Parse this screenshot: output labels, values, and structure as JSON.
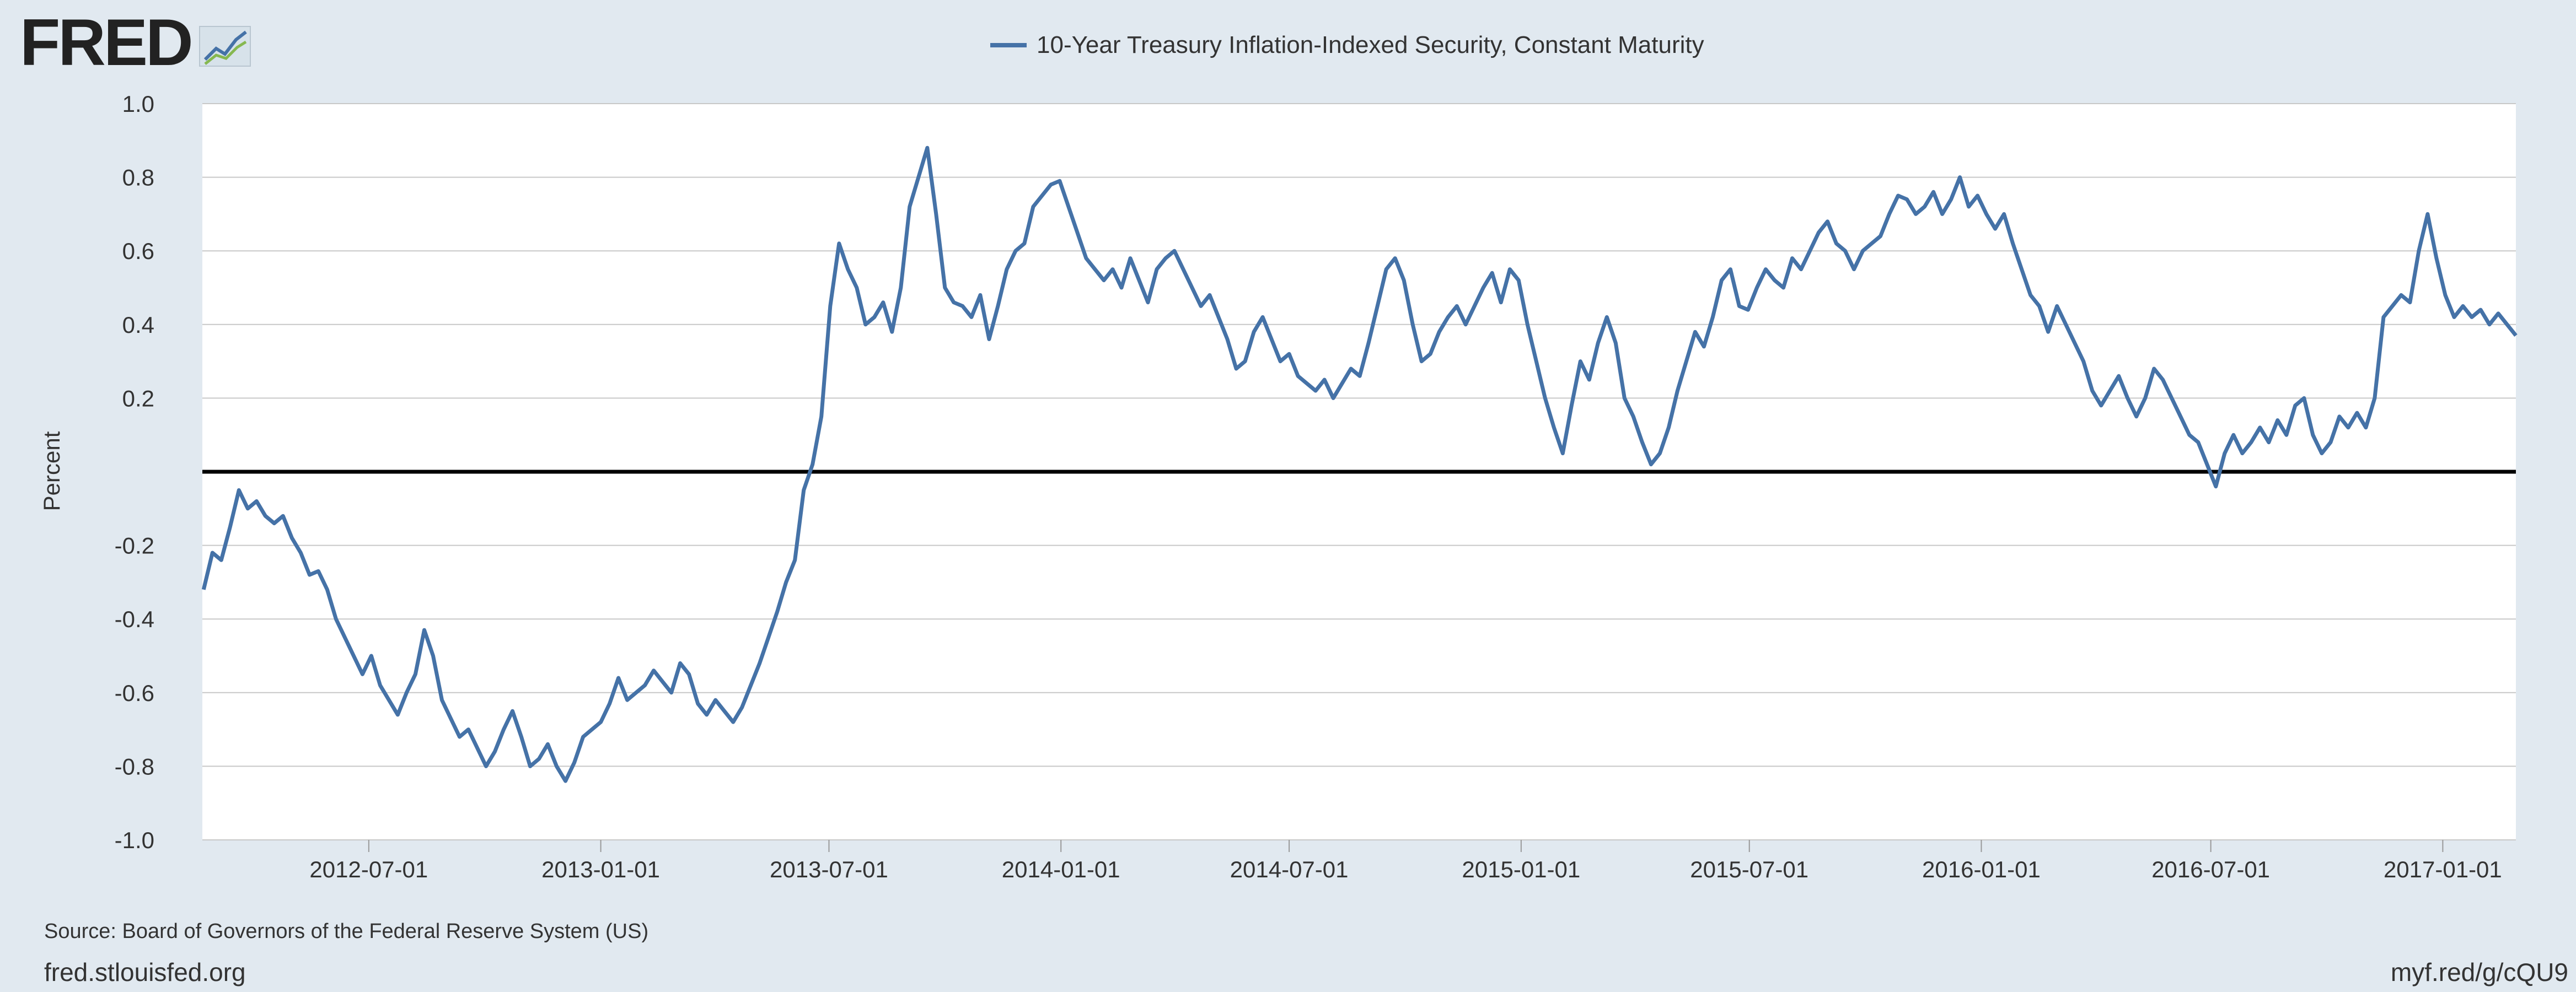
{
  "header": {
    "logo_text": "FRED",
    "logo_icon": "line-chart-icon"
  },
  "footer": {
    "source": "Source: Board of Governors of the Federal Reserve System (US)",
    "site": "fred.stlouisfed.org",
    "short_url": "myf.red/g/cQU9"
  },
  "colors": {
    "background": "#e1e9f0",
    "plot_background": "#ffffff",
    "series_line": "#4572a7",
    "gridline": "#c8c8c8",
    "zero_line": "#000000",
    "text": "#333333"
  },
  "chart_data": {
    "type": "line",
    "title": "",
    "xlabel": "",
    "ylabel": "Percent",
    "legend_position": "top-center",
    "grid": true,
    "ylim": [
      -1.0,
      1.0
    ],
    "xlim": [
      "2012-02-20",
      "2017-02-28"
    ],
    "y_ticks": [
      "1.0",
      "0.8",
      "0.6",
      "0.4",
      "0.2",
      "",
      "-0.2",
      "-0.4",
      "-0.6",
      "-0.8",
      "-1.0"
    ],
    "y_tick_values": [
      1.0,
      0.8,
      0.6,
      0.4,
      0.2,
      0.0,
      -0.2,
      -0.4,
      -0.6,
      -0.8,
      -1.0
    ],
    "x_ticks": [
      "2012-07-01",
      "2013-01-01",
      "2013-07-01",
      "2014-01-01",
      "2014-07-01",
      "2015-01-01",
      "2015-07-01",
      "2016-01-01",
      "2016-07-01",
      "2017-01-01"
    ],
    "series": [
      {
        "name": "10-Year Treasury Inflation-Indexed Security, Constant Maturity",
        "points": [
          [
            "2012-02-21",
            -0.32
          ],
          [
            "2012-02-28",
            -0.22
          ],
          [
            "2012-03-06",
            -0.24
          ],
          [
            "2012-03-13",
            -0.15
          ],
          [
            "2012-03-20",
            -0.05
          ],
          [
            "2012-03-27",
            -0.1
          ],
          [
            "2012-04-03",
            -0.08
          ],
          [
            "2012-04-10",
            -0.12
          ],
          [
            "2012-04-17",
            -0.14
          ],
          [
            "2012-04-24",
            -0.12
          ],
          [
            "2012-05-01",
            -0.18
          ],
          [
            "2012-05-08",
            -0.22
          ],
          [
            "2012-05-15",
            -0.28
          ],
          [
            "2012-05-22",
            -0.27
          ],
          [
            "2012-05-29",
            -0.32
          ],
          [
            "2012-06-05",
            -0.4
          ],
          [
            "2012-06-12",
            -0.45
          ],
          [
            "2012-06-19",
            -0.5
          ],
          [
            "2012-06-26",
            -0.55
          ],
          [
            "2012-07-03",
            -0.5
          ],
          [
            "2012-07-10",
            -0.58
          ],
          [
            "2012-07-17",
            -0.62
          ],
          [
            "2012-07-24",
            -0.66
          ],
          [
            "2012-07-31",
            -0.6
          ],
          [
            "2012-08-07",
            -0.55
          ],
          [
            "2012-08-14",
            -0.43
          ],
          [
            "2012-08-21",
            -0.5
          ],
          [
            "2012-08-28",
            -0.62
          ],
          [
            "2012-09-04",
            -0.67
          ],
          [
            "2012-09-11",
            -0.72
          ],
          [
            "2012-09-18",
            -0.7
          ],
          [
            "2012-09-25",
            -0.75
          ],
          [
            "2012-10-02",
            -0.8
          ],
          [
            "2012-10-09",
            -0.76
          ],
          [
            "2012-10-16",
            -0.7
          ],
          [
            "2012-10-23",
            -0.65
          ],
          [
            "2012-10-30",
            -0.72
          ],
          [
            "2012-11-06",
            -0.8
          ],
          [
            "2012-11-13",
            -0.78
          ],
          [
            "2012-11-20",
            -0.74
          ],
          [
            "2012-11-27",
            -0.8
          ],
          [
            "2012-12-04",
            -0.84
          ],
          [
            "2012-12-11",
            -0.79
          ],
          [
            "2012-12-18",
            -0.72
          ],
          [
            "2012-12-25",
            -0.7
          ],
          [
            "2013-01-01",
            -0.68
          ],
          [
            "2013-01-08",
            -0.63
          ],
          [
            "2013-01-15",
            -0.56
          ],
          [
            "2013-01-22",
            -0.62
          ],
          [
            "2013-01-29",
            -0.6
          ],
          [
            "2013-02-05",
            -0.58
          ],
          [
            "2013-02-12",
            -0.54
          ],
          [
            "2013-02-19",
            -0.57
          ],
          [
            "2013-02-26",
            -0.6
          ],
          [
            "2013-03-05",
            -0.52
          ],
          [
            "2013-03-12",
            -0.55
          ],
          [
            "2013-03-19",
            -0.63
          ],
          [
            "2013-03-26",
            -0.66
          ],
          [
            "2013-04-02",
            -0.62
          ],
          [
            "2013-04-09",
            -0.65
          ],
          [
            "2013-04-16",
            -0.68
          ],
          [
            "2013-04-23",
            -0.64
          ],
          [
            "2013-04-30",
            -0.58
          ],
          [
            "2013-05-07",
            -0.52
          ],
          [
            "2013-05-14",
            -0.45
          ],
          [
            "2013-05-21",
            -0.38
          ],
          [
            "2013-05-28",
            -0.3
          ],
          [
            "2013-06-04",
            -0.24
          ],
          [
            "2013-06-11",
            -0.05
          ],
          [
            "2013-06-18",
            0.02
          ],
          [
            "2013-06-25",
            0.15
          ],
          [
            "2013-07-02",
            0.45
          ],
          [
            "2013-07-09",
            0.62
          ],
          [
            "2013-07-16",
            0.55
          ],
          [
            "2013-07-23",
            0.5
          ],
          [
            "2013-07-30",
            0.4
          ],
          [
            "2013-08-06",
            0.42
          ],
          [
            "2013-08-13",
            0.46
          ],
          [
            "2013-08-20",
            0.38
          ],
          [
            "2013-08-27",
            0.5
          ],
          [
            "2013-09-03",
            0.72
          ],
          [
            "2013-09-10",
            0.8
          ],
          [
            "2013-09-17",
            0.88
          ],
          [
            "2013-09-24",
            0.7
          ],
          [
            "2013-10-01",
            0.5
          ],
          [
            "2013-10-08",
            0.46
          ],
          [
            "2013-10-15",
            0.45
          ],
          [
            "2013-10-22",
            0.42
          ],
          [
            "2013-10-29",
            0.48
          ],
          [
            "2013-11-05",
            0.36
          ],
          [
            "2013-11-12",
            0.45
          ],
          [
            "2013-11-19",
            0.55
          ],
          [
            "2013-11-26",
            0.6
          ],
          [
            "2013-12-03",
            0.62
          ],
          [
            "2013-12-10",
            0.72
          ],
          [
            "2013-12-17",
            0.75
          ],
          [
            "2013-12-24",
            0.78
          ],
          [
            "2013-12-31",
            0.79
          ],
          [
            "2014-01-07",
            0.72
          ],
          [
            "2014-01-14",
            0.65
          ],
          [
            "2014-01-21",
            0.58
          ],
          [
            "2014-01-28",
            0.55
          ],
          [
            "2014-02-04",
            0.52
          ],
          [
            "2014-02-11",
            0.55
          ],
          [
            "2014-02-18",
            0.5
          ],
          [
            "2014-02-25",
            0.58
          ],
          [
            "2014-03-04",
            0.52
          ],
          [
            "2014-03-11",
            0.46
          ],
          [
            "2014-03-18",
            0.55
          ],
          [
            "2014-03-25",
            0.58
          ],
          [
            "2014-04-01",
            0.6
          ],
          [
            "2014-04-08",
            0.55
          ],
          [
            "2014-04-15",
            0.5
          ],
          [
            "2014-04-22",
            0.45
          ],
          [
            "2014-04-29",
            0.48
          ],
          [
            "2014-05-06",
            0.42
          ],
          [
            "2014-05-13",
            0.36
          ],
          [
            "2014-05-20",
            0.28
          ],
          [
            "2014-05-27",
            0.3
          ],
          [
            "2014-06-03",
            0.38
          ],
          [
            "2014-06-10",
            0.42
          ],
          [
            "2014-06-17",
            0.36
          ],
          [
            "2014-06-24",
            0.3
          ],
          [
            "2014-07-01",
            0.32
          ],
          [
            "2014-07-08",
            0.26
          ],
          [
            "2014-07-15",
            0.24
          ],
          [
            "2014-07-22",
            0.22
          ],
          [
            "2014-07-29",
            0.25
          ],
          [
            "2014-08-05",
            0.2
          ],
          [
            "2014-08-12",
            0.24
          ],
          [
            "2014-08-19",
            0.28
          ],
          [
            "2014-08-26",
            0.26
          ],
          [
            "2014-09-02",
            0.35
          ],
          [
            "2014-09-09",
            0.45
          ],
          [
            "2014-09-16",
            0.55
          ],
          [
            "2014-09-23",
            0.58
          ],
          [
            "2014-09-30",
            0.52
          ],
          [
            "2014-10-07",
            0.4
          ],
          [
            "2014-10-14",
            0.3
          ],
          [
            "2014-10-21",
            0.32
          ],
          [
            "2014-10-28",
            0.38
          ],
          [
            "2014-11-04",
            0.42
          ],
          [
            "2014-11-11",
            0.45
          ],
          [
            "2014-11-18",
            0.4
          ],
          [
            "2014-11-25",
            0.45
          ],
          [
            "2014-12-02",
            0.5
          ],
          [
            "2014-12-09",
            0.54
          ],
          [
            "2014-12-16",
            0.46
          ],
          [
            "2014-12-23",
            0.55
          ],
          [
            "2014-12-30",
            0.52
          ],
          [
            "2015-01-06",
            0.4
          ],
          [
            "2015-01-13",
            0.3
          ],
          [
            "2015-01-20",
            0.2
          ],
          [
            "2015-01-27",
            0.12
          ],
          [
            "2015-02-03",
            0.05
          ],
          [
            "2015-02-10",
            0.18
          ],
          [
            "2015-02-17",
            0.3
          ],
          [
            "2015-02-24",
            0.25
          ],
          [
            "2015-03-03",
            0.35
          ],
          [
            "2015-03-10",
            0.42
          ],
          [
            "2015-03-17",
            0.35
          ],
          [
            "2015-03-24",
            0.2
          ],
          [
            "2015-03-31",
            0.15
          ],
          [
            "2015-04-07",
            0.08
          ],
          [
            "2015-04-14",
            0.02
          ],
          [
            "2015-04-21",
            0.05
          ],
          [
            "2015-04-28",
            0.12
          ],
          [
            "2015-05-05",
            0.22
          ],
          [
            "2015-05-12",
            0.3
          ],
          [
            "2015-05-19",
            0.38
          ],
          [
            "2015-05-26",
            0.34
          ],
          [
            "2015-06-02",
            0.42
          ],
          [
            "2015-06-09",
            0.52
          ],
          [
            "2015-06-16",
            0.55
          ],
          [
            "2015-06-23",
            0.45
          ],
          [
            "2015-06-30",
            0.44
          ],
          [
            "2015-07-07",
            0.5
          ],
          [
            "2015-07-14",
            0.55
          ],
          [
            "2015-07-21",
            0.52
          ],
          [
            "2015-07-28",
            0.5
          ],
          [
            "2015-08-04",
            0.58
          ],
          [
            "2015-08-11",
            0.55
          ],
          [
            "2015-08-18",
            0.6
          ],
          [
            "2015-08-25",
            0.65
          ],
          [
            "2015-09-01",
            0.68
          ],
          [
            "2015-09-08",
            0.62
          ],
          [
            "2015-09-15",
            0.6
          ],
          [
            "2015-09-22",
            0.55
          ],
          [
            "2015-09-29",
            0.6
          ],
          [
            "2015-10-06",
            0.62
          ],
          [
            "2015-10-13",
            0.64
          ],
          [
            "2015-10-20",
            0.7
          ],
          [
            "2015-10-27",
            0.75
          ],
          [
            "2015-11-03",
            0.74
          ],
          [
            "2015-11-10",
            0.7
          ],
          [
            "2015-11-17",
            0.72
          ],
          [
            "2015-11-24",
            0.76
          ],
          [
            "2015-12-01",
            0.7
          ],
          [
            "2015-12-08",
            0.74
          ],
          [
            "2015-12-15",
            0.8
          ],
          [
            "2015-12-22",
            0.72
          ],
          [
            "2015-12-29",
            0.75
          ],
          [
            "2016-01-05",
            0.7
          ],
          [
            "2016-01-12",
            0.66
          ],
          [
            "2016-01-19",
            0.7
          ],
          [
            "2016-01-26",
            0.62
          ],
          [
            "2016-02-02",
            0.55
          ],
          [
            "2016-02-09",
            0.48
          ],
          [
            "2016-02-16",
            0.45
          ],
          [
            "2016-02-23",
            0.38
          ],
          [
            "2016-03-01",
            0.45
          ],
          [
            "2016-03-08",
            0.4
          ],
          [
            "2016-03-15",
            0.35
          ],
          [
            "2016-03-22",
            0.3
          ],
          [
            "2016-03-29",
            0.22
          ],
          [
            "2016-04-05",
            0.18
          ],
          [
            "2016-04-12",
            0.22
          ],
          [
            "2016-04-19",
            0.26
          ],
          [
            "2016-04-26",
            0.2
          ],
          [
            "2016-05-03",
            0.15
          ],
          [
            "2016-05-10",
            0.2
          ],
          [
            "2016-05-17",
            0.28
          ],
          [
            "2016-05-24",
            0.25
          ],
          [
            "2016-05-31",
            0.2
          ],
          [
            "2016-06-07",
            0.15
          ],
          [
            "2016-06-14",
            0.1
          ],
          [
            "2016-06-21",
            0.08
          ],
          [
            "2016-06-28",
            0.02
          ],
          [
            "2016-07-05",
            -0.04
          ],
          [
            "2016-07-12",
            0.05
          ],
          [
            "2016-07-19",
            0.1
          ],
          [
            "2016-07-26",
            0.05
          ],
          [
            "2016-08-02",
            0.08
          ],
          [
            "2016-08-09",
            0.12
          ],
          [
            "2016-08-16",
            0.08
          ],
          [
            "2016-08-23",
            0.14
          ],
          [
            "2016-08-30",
            0.1
          ],
          [
            "2016-09-06",
            0.18
          ],
          [
            "2016-09-13",
            0.2
          ],
          [
            "2016-09-20",
            0.1
          ],
          [
            "2016-09-27",
            0.05
          ],
          [
            "2016-10-04",
            0.08
          ],
          [
            "2016-10-11",
            0.15
          ],
          [
            "2016-10-18",
            0.12
          ],
          [
            "2016-10-25",
            0.16
          ],
          [
            "2016-11-01",
            0.12
          ],
          [
            "2016-11-08",
            0.2
          ],
          [
            "2016-11-15",
            0.42
          ],
          [
            "2016-11-22",
            0.45
          ],
          [
            "2016-11-29",
            0.48
          ],
          [
            "2016-12-06",
            0.46
          ],
          [
            "2016-12-13",
            0.6
          ],
          [
            "2016-12-20",
            0.7
          ],
          [
            "2016-12-27",
            0.58
          ],
          [
            "2017-01-03",
            0.48
          ],
          [
            "2017-01-10",
            0.42
          ],
          [
            "2017-01-17",
            0.45
          ],
          [
            "2017-01-24",
            0.42
          ],
          [
            "2017-01-31",
            0.44
          ],
          [
            "2017-02-07",
            0.4
          ],
          [
            "2017-02-14",
            0.43
          ],
          [
            "2017-02-21",
            0.4
          ],
          [
            "2017-02-28",
            0.37
          ]
        ]
      }
    ]
  }
}
